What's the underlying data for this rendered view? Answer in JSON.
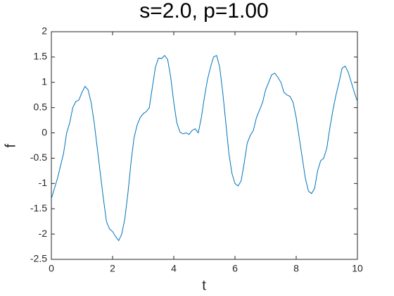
{
  "chart_data": {
    "type": "line",
    "title": "s=2.0, p=1.00",
    "x_label": "t",
    "y_label": "f",
    "x": [
      0,
      0.1,
      0.2,
      0.3,
      0.4,
      0.5,
      0.6,
      0.7,
      0.8,
      0.9,
      1,
      1.1,
      1.2,
      1.3,
      1.4,
      1.5,
      1.6,
      1.7,
      1.8,
      1.9,
      2,
      2.1,
      2.2,
      2.3,
      2.4,
      2.5,
      2.6,
      2.7,
      2.8,
      2.9,
      3,
      3.1,
      3.2,
      3.3,
      3.4,
      3.5,
      3.6,
      3.7,
      3.8,
      3.9,
      4,
      4.1,
      4.2,
      4.3,
      4.4,
      4.5,
      4.6,
      4.7,
      4.8,
      4.9,
      5,
      5.1,
      5.2,
      5.3,
      5.4,
      5.5,
      5.6,
      5.7,
      5.8,
      5.9,
      6,
      6.1,
      6.2,
      6.3,
      6.4,
      6.5,
      6.6,
      6.7,
      6.8,
      6.9,
      7,
      7.1,
      7.2,
      7.3,
      7.4,
      7.5,
      7.6,
      7.7,
      7.8,
      7.9,
      8,
      8.1,
      8.2,
      8.3,
      8.4,
      8.5,
      8.6,
      8.7,
      8.8,
      8.9,
      9,
      9.1,
      9.2,
      9.3,
      9.4,
      9.5,
      9.6,
      9.7,
      9.8,
      9.9,
      10
    ],
    "series": [
      {
        "color": "#0072bd",
        "values": [
          -1.3,
          -1.1,
          -0.9,
          -0.65,
          -0.4,
          0,
          0.2,
          0.5,
          0.62,
          0.65,
          0.8,
          0.92,
          0.85,
          0.6,
          0.2,
          -0.3,
          -0.8,
          -1.3,
          -1.75,
          -1.9,
          -1.95,
          -2.05,
          -2.13,
          -2,
          -1.7,
          -1.2,
          -0.6,
          -0.1,
          0.15,
          0.3,
          0.38,
          0.42,
          0.5,
          0.9,
          1.3,
          1.48,
          1.47,
          1.53,
          1.45,
          1.1,
          0.6,
          0.2,
          0.02,
          -0.02,
          0,
          -0.03,
          0.05,
          0.08,
          0,
          0.3,
          0.7,
          1.05,
          1.3,
          1.5,
          1.53,
          1.3,
          0.8,
          0.2,
          -0.4,
          -0.8,
          -1,
          -1.05,
          -0.95,
          -0.6,
          -0.2,
          -0.05,
          0.05,
          0.3,
          0.45,
          0.6,
          0.85,
          1,
          1.15,
          1.18,
          1.1,
          1,
          0.8,
          0.75,
          0.72,
          0.6,
          0.3,
          -0.1,
          -0.5,
          -0.9,
          -1.15,
          -1.2,
          -1.1,
          -0.75,
          -0.55,
          -0.5,
          -0.3,
          0.1,
          0.45,
          0.75,
          1,
          1.28,
          1.32,
          1.2,
          1,
          0.8,
          0.62
        ]
      }
    ],
    "xlim": [
      0,
      10
    ],
    "xticks": [
      0,
      2,
      4,
      6,
      8,
      10
    ],
    "ylim": [
      -2.5,
      2
    ],
    "yticks": [
      -2.5,
      -2,
      -1.5,
      -1,
      -0.5,
      0,
      0.5,
      1,
      1.5,
      2
    ]
  }
}
